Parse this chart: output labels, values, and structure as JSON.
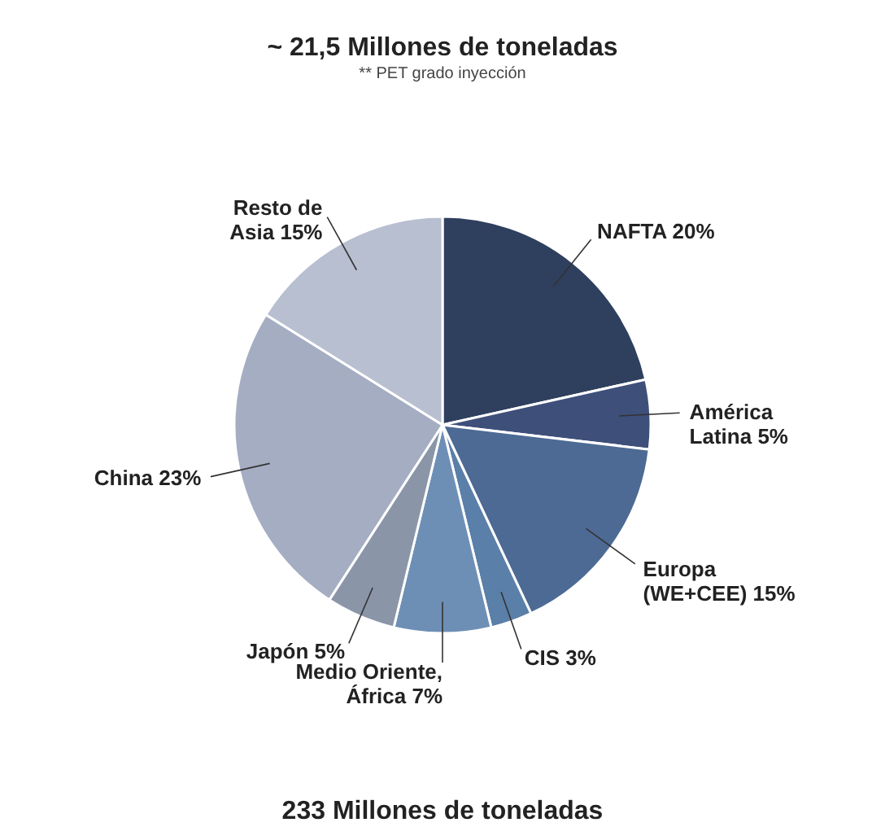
{
  "chart_data": {
    "type": "pie",
    "title": "~ 21,5 Millones de toneladas",
    "subtitle": "** PET grado inyección",
    "categories": [
      "NAFTA",
      "América Latina",
      "Europa (WE+CEE)",
      "CIS",
      "Medio Oriente, África",
      "Japón",
      "China",
      "Resto de Asia"
    ],
    "values": [
      20,
      5,
      15,
      3,
      7,
      5,
      23,
      15
    ],
    "value_labels": [
      "20%",
      "5%",
      "15%",
      "3%",
      "7%",
      "5%",
      "23%",
      "15%"
    ],
    "colors": [
      "#2f3f5e",
      "#3e4f7a",
      "#4d6a94",
      "#5a7fa8",
      "#6e8fb5",
      "#8a96a8",
      "#a4adc2",
      "#b8bfd0"
    ],
    "annotations": [
      "233 Millones de toneladas"
    ],
    "legend": false
  }
}
